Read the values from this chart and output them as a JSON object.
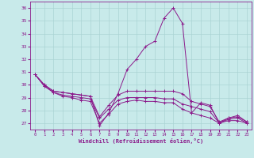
{
  "xlabel": "Windchill (Refroidissement éolien,°C)",
  "bg_color": "#c8eaea",
  "line_color": "#8b1a8b",
  "grid_color": "#aad4d4",
  "xlim": [
    -0.5,
    23.5
  ],
  "ylim": [
    26.5,
    36.5
  ],
  "yticks": [
    27,
    28,
    29,
    30,
    31,
    32,
    33,
    34,
    35,
    36
  ],
  "xticks": [
    0,
    1,
    2,
    3,
    4,
    5,
    6,
    7,
    8,
    9,
    10,
    11,
    12,
    13,
    14,
    15,
    16,
    17,
    18,
    19,
    20,
    21,
    22,
    23
  ],
  "series": [
    [
      30.8,
      30.0,
      29.5,
      29.4,
      29.3,
      29.2,
      29.1,
      26.8,
      27.8,
      29.3,
      31.2,
      32.0,
      33.0,
      33.4,
      35.2,
      36.0,
      34.8,
      27.8,
      28.6,
      28.4,
      27.0,
      27.4,
      27.6,
      27.1
    ],
    [
      30.8,
      30.0,
      29.5,
      29.4,
      29.3,
      29.2,
      29.1,
      27.5,
      28.4,
      29.2,
      29.5,
      29.5,
      29.5,
      29.5,
      29.5,
      29.5,
      29.3,
      28.7,
      28.5,
      28.3,
      27.1,
      27.4,
      27.5,
      27.1
    ],
    [
      30.8,
      29.9,
      29.4,
      29.2,
      29.1,
      29.0,
      28.9,
      27.4,
      28.1,
      28.8,
      29.0,
      29.0,
      29.0,
      29.0,
      28.9,
      28.9,
      28.5,
      28.3,
      28.1,
      27.9,
      27.0,
      27.3,
      27.4,
      27.0
    ],
    [
      30.8,
      29.9,
      29.4,
      29.1,
      29.0,
      28.8,
      28.7,
      27.0,
      27.7,
      28.5,
      28.7,
      28.8,
      28.7,
      28.7,
      28.6,
      28.6,
      28.1,
      27.8,
      27.6,
      27.4,
      27.0,
      27.2,
      27.2,
      27.0
    ]
  ]
}
